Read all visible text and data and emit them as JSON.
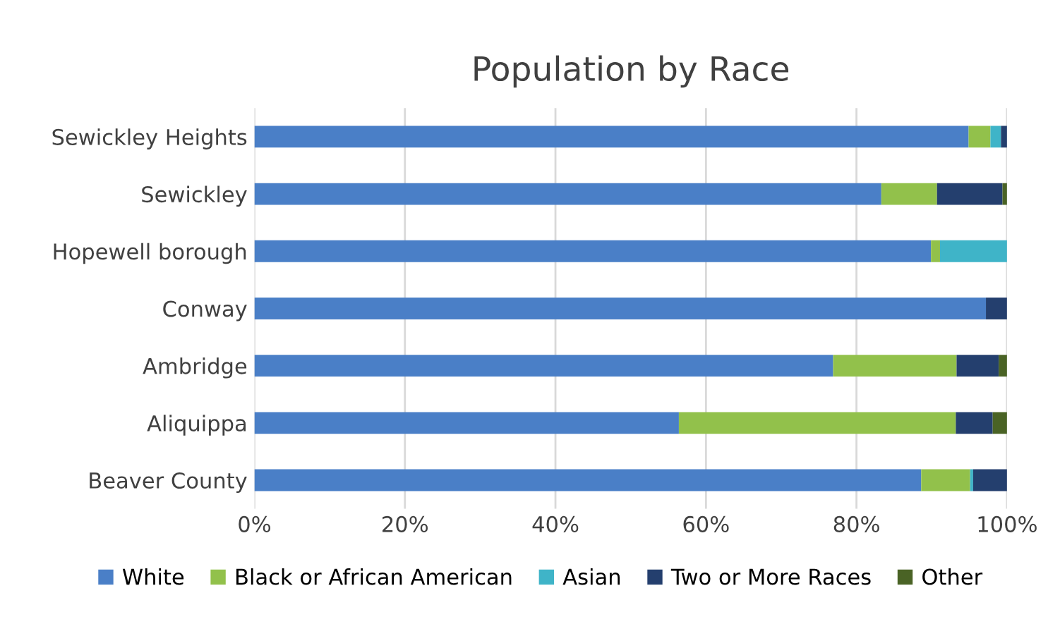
{
  "chart_data": {
    "type": "bar",
    "orientation": "horizontal",
    "stacked": true,
    "title": "Population by Race",
    "categories": [
      "Sewickley Heights",
      "Sewickley",
      "Hopewell borough",
      "Conway",
      "Ambridge",
      "Aliquippa",
      "Beaver County"
    ],
    "series": [
      {
        "name": "White",
        "color": "#4a7fc7",
        "values": [
          94.9,
          83.3,
          89.9,
          97.2,
          76.9,
          56.4,
          88.6
        ]
      },
      {
        "name": "Black or African American",
        "color": "#92c14b",
        "values": [
          2.9,
          7.4,
          1.2,
          0,
          16.4,
          36.8,
          6.5
        ]
      },
      {
        "name": "Asian",
        "color": "#3fb4c8",
        "values": [
          1.4,
          0,
          8.9,
          0,
          0,
          0,
          0.4
        ]
      },
      {
        "name": "Two or More Races",
        "color": "#243f6e",
        "values": [
          0.8,
          8.7,
          0,
          2.8,
          5.6,
          4.9,
          4.5
        ]
      },
      {
        "name": "Other",
        "color": "#4a6325",
        "values": [
          0,
          0.6,
          0,
          0,
          1.1,
          1.9,
          0
        ]
      }
    ],
    "xlim": [
      0,
      100
    ],
    "xticks": [
      {
        "value": 0,
        "label": "0%"
      },
      {
        "value": 20,
        "label": "20%"
      },
      {
        "value": 40,
        "label": "40%"
      },
      {
        "value": 60,
        "label": "60%"
      },
      {
        "value": 80,
        "label": "80%"
      },
      {
        "value": 100,
        "label": "100%"
      }
    ],
    "grid": "x",
    "legend": "bottom"
  }
}
